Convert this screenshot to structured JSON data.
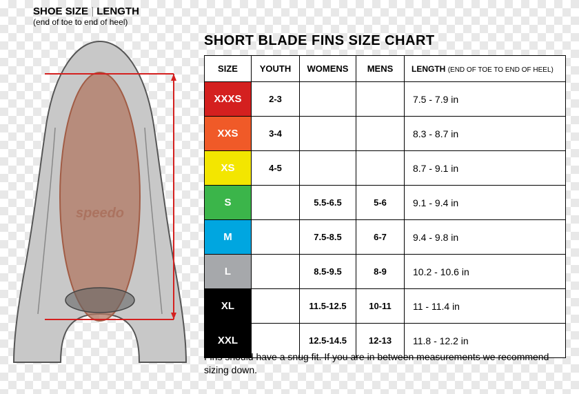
{
  "headerLeft": {
    "title_a": "SHOE SIZE",
    "title_sep": " | ",
    "title_b": "LENGTH",
    "sub": "(end of toe to end of heel)"
  },
  "chartTitle": "SHORT BLADE FINS SIZE CHART",
  "columns": {
    "size": "SIZE",
    "youth": "YOUTH",
    "womens": "WOMENS",
    "mens": "MENS",
    "length": "LENGTH",
    "length_sub": "(END OF TOE TO END OF HEEL)"
  },
  "rows": [
    {
      "size": "XXXS",
      "youth": "2-3",
      "womens": "",
      "mens": "",
      "length": "7.5 - 7.9 in",
      "color": "#d4201f"
    },
    {
      "size": "XXS",
      "youth": "3-4",
      "womens": "",
      "mens": "",
      "length": "8.3 - 8.7 in",
      "color": "#f05a28"
    },
    {
      "size": "XS",
      "youth": "4-5",
      "womens": "",
      "mens": "",
      "length": "8.7 - 9.1 in",
      "color": "#f3e600"
    },
    {
      "size": "S",
      "youth": "",
      "womens": "5.5-6.5",
      "mens": "5-6",
      "length": "9.1 - 9.4 in",
      "color": "#3bb54a"
    },
    {
      "size": "M",
      "youth": "",
      "womens": "7.5-8.5",
      "mens": "6-7",
      "length": "9.4 - 9.8 in",
      "color": "#00a6e0"
    },
    {
      "size": "L",
      "youth": "",
      "womens": "8.5-9.5",
      "mens": "8-9",
      "length": "10.2 - 10.6 in",
      "color": "#a6a8ab"
    },
    {
      "size": "XL",
      "youth": "",
      "womens": "11.5-12.5",
      "mens": "10-11",
      "length": "11 - 11.4 in",
      "color": "#000000"
    },
    {
      "size": "XXL",
      "youth": "",
      "womens": "12.5-14.5",
      "mens": "12-13",
      "length": "11.8 - 12.2 in",
      "color": "#000000"
    }
  ],
  "footnote": "Fins should have a snug fit. If you are in between measurements we recommend sizing down.",
  "diagram": {
    "brand": "speedo",
    "fin_fill": "#c8c8c8",
    "fin_stroke": "#555555",
    "foot_fill": "#b27863",
    "foot_stroke": "#a15c45",
    "ruler_color": "#d4201f",
    "strap_fill": "#888888"
  }
}
